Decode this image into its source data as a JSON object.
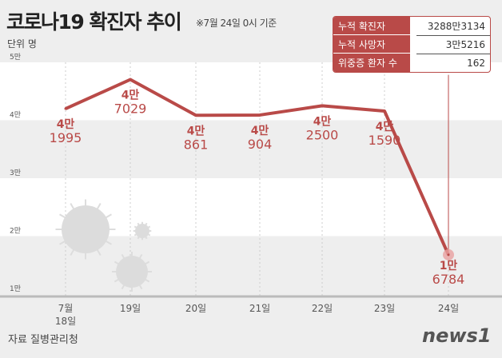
{
  "header": {
    "title": "코로나19 확진자 추이",
    "note": "※7월 24일 0시 기준",
    "unit": "단위 명"
  },
  "summary": [
    {
      "label": "누적 확진자",
      "value": "3288만3134"
    },
    {
      "label": "누적 사망자",
      "value": "3만5216"
    },
    {
      "label": "위중증 환자 수",
      "value": "162"
    }
  ],
  "footer": {
    "source": "자료 질병관리청",
    "logo": "news1"
  },
  "colors": {
    "line": "#b94a48",
    "band": "#ffffff",
    "background": "#eeeeee"
  },
  "chart_data": {
    "type": "line",
    "title": "코로나19 확진자 추이",
    "ylim": [
      10000,
      50000
    ],
    "yticks": [
      {
        "v": 50000,
        "label": "5만"
      },
      {
        "v": 40000,
        "label": "4만"
      },
      {
        "v": 30000,
        "label": "3만"
      },
      {
        "v": 20000,
        "label": "2만"
      },
      {
        "v": 10000,
        "label": "1만"
      }
    ],
    "categories": [
      [
        "7월",
        "18일"
      ],
      [
        "19일"
      ],
      [
        "20일"
      ],
      [
        "21일"
      ],
      [
        "22일"
      ],
      [
        "23일"
      ],
      [
        "24일"
      ]
    ],
    "values": [
      41995,
      47029,
      40861,
      40904,
      42500,
      41590,
      16784
    ],
    "data_labels": [
      [
        "4만",
        "1995"
      ],
      [
        "4만",
        "7029"
      ],
      [
        "4만",
        "861"
      ],
      [
        "4만",
        "904"
      ],
      [
        "4만",
        "2500"
      ],
      [
        "4만",
        "1590"
      ],
      [
        "1만",
        "6784"
      ]
    ]
  }
}
